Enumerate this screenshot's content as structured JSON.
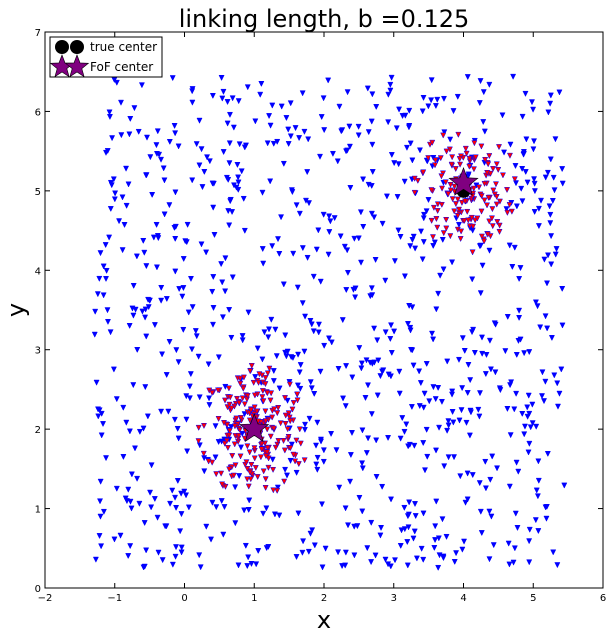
{
  "chart_data": {
    "type": "scatter",
    "title": "linking length, b =0.125",
    "xlabel": "x",
    "ylabel": "y",
    "xlim": [
      -2,
      6
    ],
    "ylim": [
      0,
      7
    ],
    "xticks": [
      "−2",
      "−1",
      "0",
      "1",
      "2",
      "3",
      "4",
      "5",
      "6"
    ],
    "yticks": [
      "0",
      "1",
      "2",
      "3",
      "4",
      "5",
      "6",
      "7"
    ],
    "grid": false,
    "legend_placement": "top-left",
    "legend": {
      "true_center_label": "true center",
      "fof_center_label": "FoF center"
    },
    "background_points": {
      "color": "#0000ff",
      "x_range": [
        -1.3,
        5.45
      ],
      "y_range": [
        0.25,
        6.45
      ],
      "approx_count": 900
    },
    "clusters": [
      {
        "center": [
          1.0,
          2.0
        ],
        "fof_center": [
          1.0,
          2.0
        ],
        "member_color": "#ff0000",
        "approx_members": 220,
        "radius": 0.85
      },
      {
        "center": [
          4.0,
          5.0
        ],
        "fof_center": [
          4.0,
          5.1
        ],
        "member_color": "#ff0000",
        "approx_members": 150,
        "radius": 0.8
      }
    ],
    "true_center_color": "#000000",
    "fof_center_color": "#800080"
  }
}
